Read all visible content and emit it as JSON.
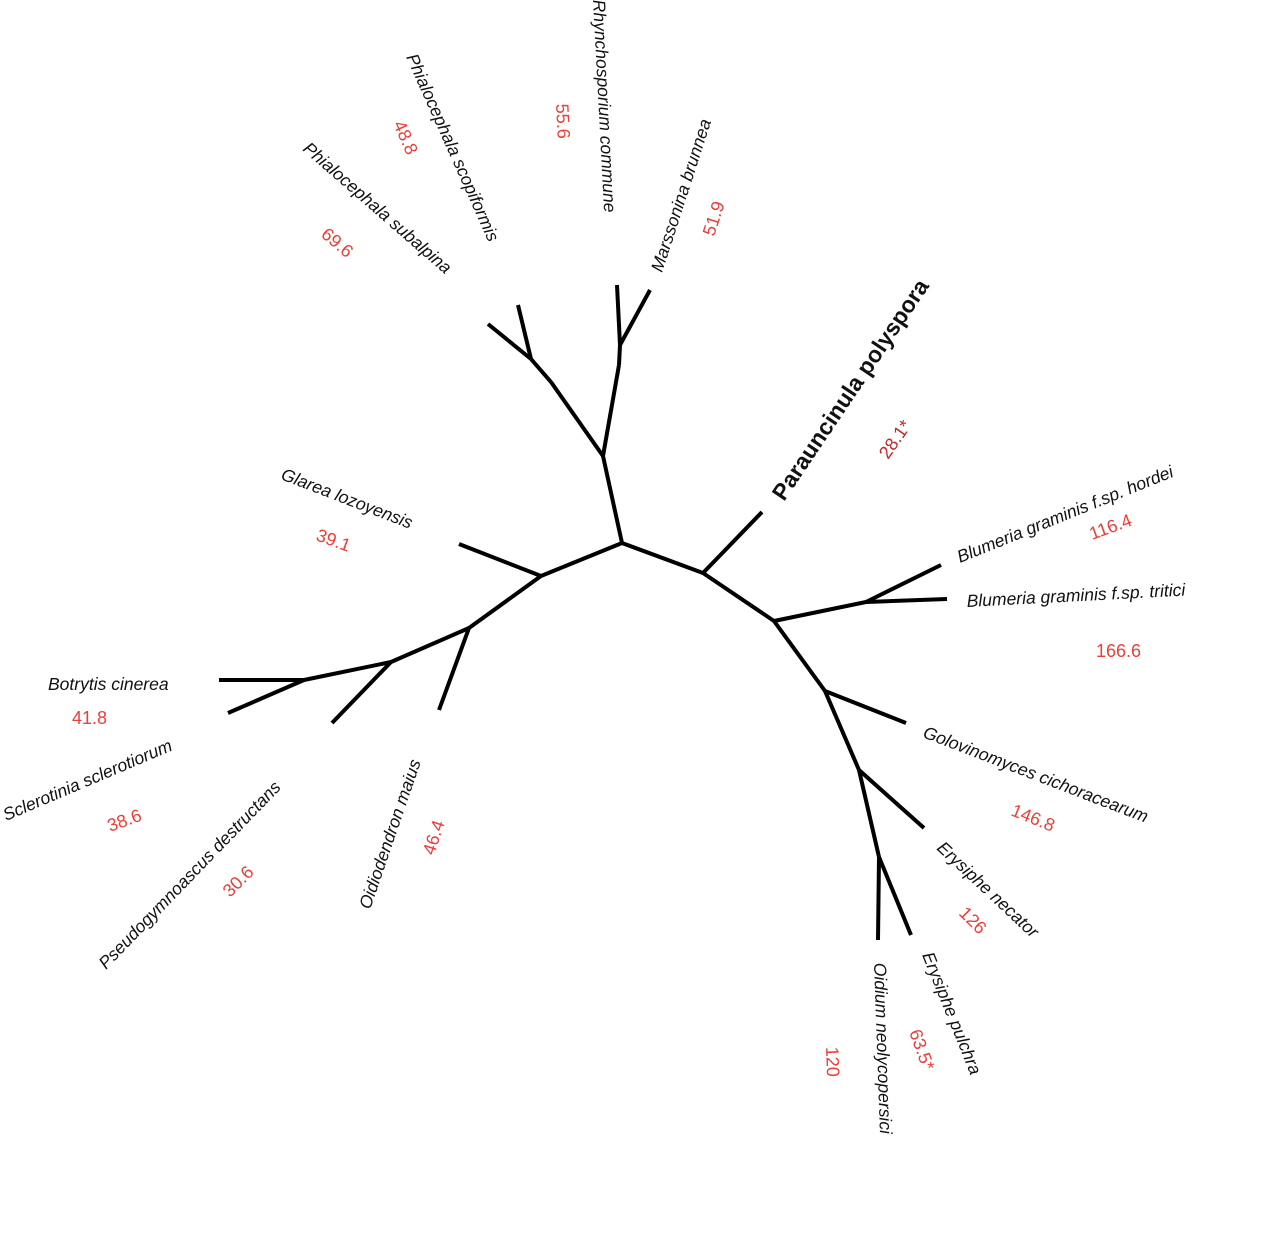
{
  "colors": {
    "branch": "#000000",
    "species": "#111111",
    "value": "#e8403a",
    "highlight": "#f0901e",
    "highlight_value": "#c4262a"
  },
  "species": {
    "phialocephala_subalpina": "Phialocephala subalpina",
    "phialocephala_scopiformis": "Phialocephala scopiformis",
    "rhynchosporium_commune": "Rhynchosporium commune",
    "marssonina_brunnea": "Marssonina brunnea",
    "parauncinula_polyspora": "Parauncinula polyspora",
    "blumeria_hordei": "Blumeria graminis f.sp. hordei",
    "blumeria_tritici": "Blumeria graminis f.sp. tritici",
    "golovinomyces_cichoracearum": "Golovinomyces cichoracearum",
    "erysiphe_necator": "Erysiphe necator",
    "erysiphe_pulchra": "Erysiphe pulchra",
    "oidium_neolycopersici": "Oidium neolycopersici",
    "glarea_lozoyensis": "Glarea lozoyensis",
    "botrytis_cinerea": "Botrytis cinerea",
    "sclerotinia_sclerotiorum": "Sclerotinia sclerotiorum",
    "pseudogymnoascus_destructans": "Pseudogymnoascus destructans",
    "oidiodendron_maius": "Oidiodendron maius"
  },
  "values": {
    "phialocephala_subalpina": "69.6",
    "phialocephala_scopiformis": "48.8",
    "rhynchosporium_commune": "55.6",
    "marssonina_brunnea": "51.9",
    "parauncinula_polyspora": "28.1*",
    "blumeria_hordei": "116.4",
    "blumeria_tritici": "166.6",
    "golovinomyces_cichoracearum": "146.8",
    "erysiphe_necator": "126",
    "erysiphe_pulchra": "63.5*",
    "oidium_neolycopersici": "120",
    "glarea_lozoyensis": "39.1",
    "botrytis_cinerea": "41.8",
    "sclerotinia_sclerotiorum": "38.6",
    "pseudogymnoascus_destructans": "30.6",
    "oidiodendron_maius": "46.4"
  }
}
